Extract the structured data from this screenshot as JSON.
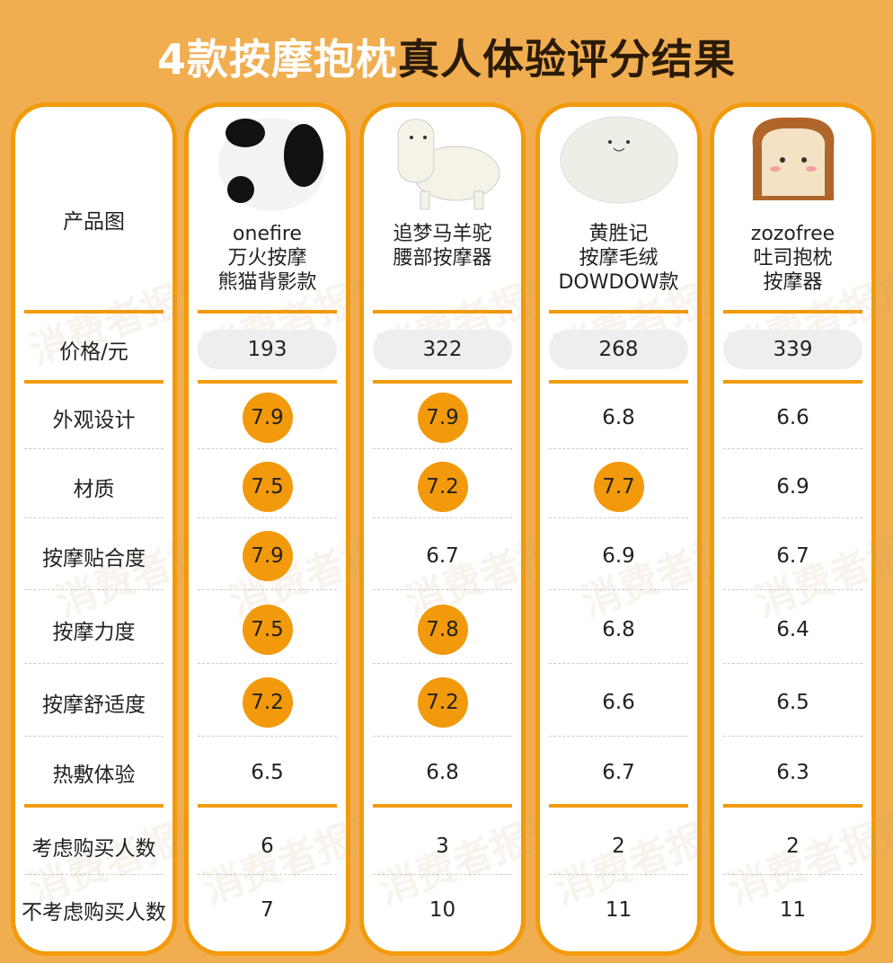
{
  "title": {
    "white": "4款按摩抱枕",
    "dark": "真人体验评分结果"
  },
  "watermark": "消费者报道",
  "row_labels": [
    "产品图",
    "价格/元",
    "外观设计",
    "材质",
    "按摩贴合度",
    "按摩力度",
    "按摩舒适度",
    "热敷体验",
    "考虑购买人数",
    "不考虑购买人数"
  ],
  "colors": {
    "background": "#f0ae50",
    "accent": "#f29a0b"
  },
  "products": [
    {
      "name_lines": [
        "onefire",
        "万火按摩",
        "熊猫背影款"
      ],
      "image": "panda-pillow",
      "price": "193",
      "scores": [
        "7.9",
        "7.5",
        "7.9",
        "7.5",
        "7.2",
        "6.5"
      ],
      "highlight": [
        true,
        true,
        true,
        true,
        true,
        false
      ],
      "consider": "6",
      "not_consider": "7"
    },
    {
      "name_lines": [
        "追梦马羊驼",
        "腰部按摩器"
      ],
      "image": "alpaca-pillow",
      "price": "322",
      "scores": [
        "7.9",
        "7.2",
        "6.7",
        "7.8",
        "7.2",
        "6.8"
      ],
      "highlight": [
        true,
        true,
        false,
        true,
        true,
        false
      ],
      "consider": "3",
      "not_consider": "10"
    },
    {
      "name_lines": [
        "黄胜记",
        "按摩毛绒",
        "DOWDOW款"
      ],
      "image": "white-blob-pillow",
      "price": "268",
      "scores": [
        "6.8",
        "7.7",
        "6.9",
        "6.8",
        "6.6",
        "6.7"
      ],
      "highlight": [
        false,
        true,
        false,
        false,
        false,
        false
      ],
      "consider": "2",
      "not_consider": "11"
    },
    {
      "name_lines": [
        "zozofree",
        "吐司抱枕",
        "按摩器"
      ],
      "image": "toast-pillow",
      "price": "339",
      "scores": [
        "6.6",
        "6.9",
        "6.7",
        "6.4",
        "6.5",
        "6.3"
      ],
      "highlight": [
        false,
        false,
        false,
        false,
        false,
        false
      ],
      "consider": "2",
      "not_consider": "11"
    }
  ]
}
